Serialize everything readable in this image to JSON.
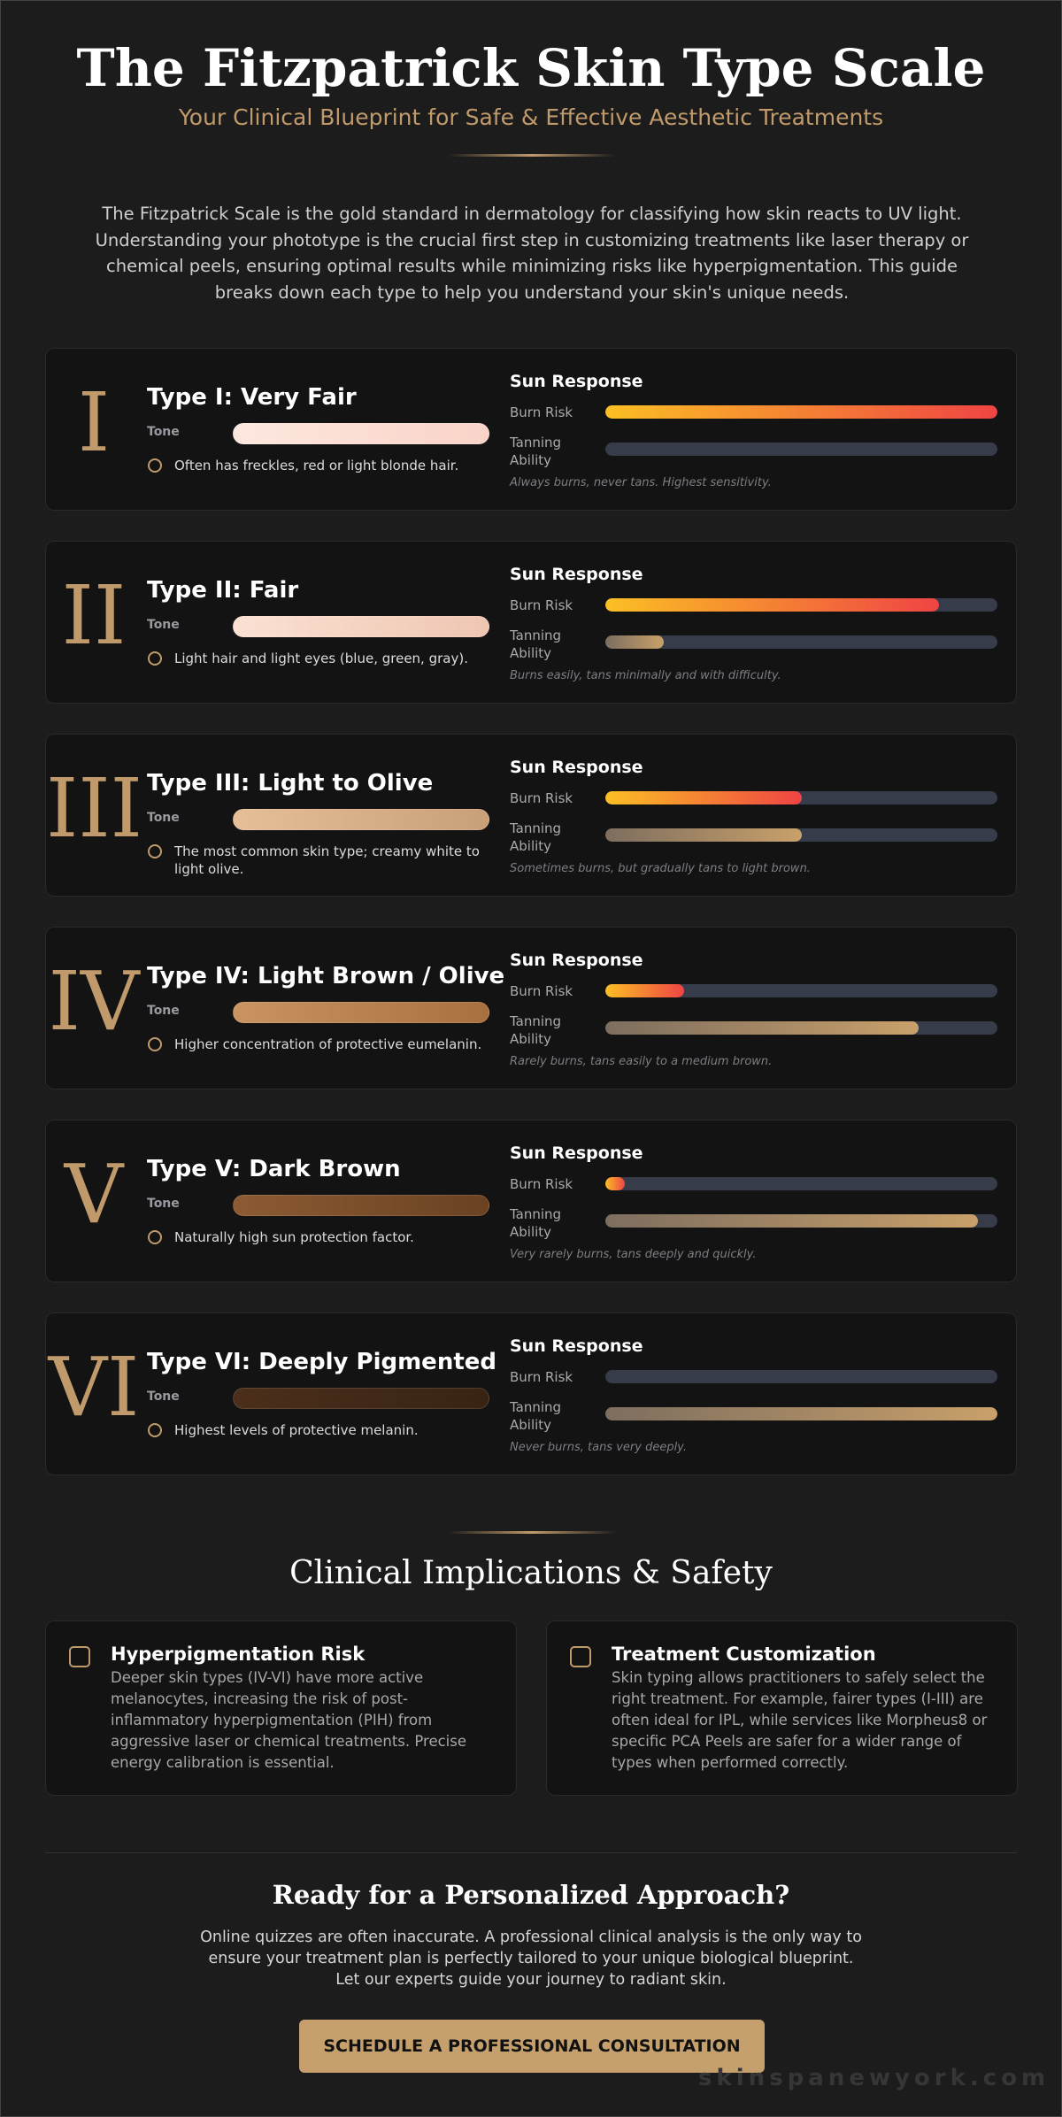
{
  "header": {
    "title": "The Fitzpatrick Skin Type Scale",
    "subtitle": "Your Clinical Blueprint for Safe & Effective Aesthetic Treatments"
  },
  "intro": "The Fitzpatrick Scale is the gold standard in dermatology for classifying how skin reacts to UV light. Understanding your phototype is the crucial first step in customizing treatments like laser therapy or chemical peels, ensuring optimal results while minimizing risks like hyperpigmentation. This guide breaks down each type to help you understand your skin's unique needs.",
  "labels": {
    "tone": "Tone",
    "sun_response": "Sun Response",
    "burn_risk": "Burn Risk",
    "tanning_ability": "Tanning Ability"
  },
  "bar_colors": {
    "burn": [
      "#fbbf24",
      "#ef4444"
    ],
    "tan": [
      "#7d6e5f",
      "#c9a06a"
    ]
  },
  "types": [
    {
      "numeral": "I",
      "name": "Type I: Very Fair",
      "tone": [
        "#fde8df",
        "#f9d3c8"
      ],
      "note": "Often has freckles, red or light blonde hair.",
      "burn_risk": 100,
      "tanning_ability": 0,
      "summary": "Always burns, never tans. Highest sensitivity."
    },
    {
      "numeral": "II",
      "name": "Type II: Fair",
      "tone": [
        "#fbe1d3",
        "#efc6b2"
      ],
      "note": "Light hair and light eyes (blue, green, gray).",
      "burn_risk": 85,
      "tanning_ability": 15,
      "summary": "Burns easily, tans minimally and with difficulty."
    },
    {
      "numeral": "III",
      "name": "Type III: Light to Olive",
      "tone": [
        "#e6be98",
        "#c99f78"
      ],
      "note": "The most common skin type; creamy white to light olive.",
      "burn_risk": 50,
      "tanning_ability": 50,
      "summary": "Sometimes burns, but gradually tans to light brown."
    },
    {
      "numeral": "IV",
      "name": "Type IV: Light Brown / Olive",
      "tone": [
        "#c99460",
        "#a8703f"
      ],
      "note": "Higher concentration of protective eumelanin.",
      "burn_risk": 20,
      "tanning_ability": 80,
      "summary": "Rarely burns, tans easily to a medium brown."
    },
    {
      "numeral": "V",
      "name": "Type V: Dark Brown",
      "tone": [
        "#8c5b33",
        "#6a4222"
      ],
      "note": "Naturally high sun protection factor.",
      "burn_risk": 5,
      "tanning_ability": 95,
      "summary": "Very rarely burns, tans deeply and quickly."
    },
    {
      "numeral": "VI",
      "name": "Type VI: Deeply Pigmented",
      "tone": [
        "#4b2f1b",
        "#382313"
      ],
      "note": "Highest levels of protective melanin.",
      "burn_risk": 0,
      "tanning_ability": 100,
      "summary": "Never burns, tans very deeply."
    }
  ],
  "implications": {
    "title": "Clinical Implications & Safety",
    "cards": [
      {
        "title": "Hyperpigmentation Risk",
        "text": "Deeper skin types (IV-VI) have more active melanocytes, increasing the risk of post-inflammatory hyperpigmentation (PIH) from aggressive laser or chemical treatments. Precise energy calibration is essential."
      },
      {
        "title": "Treatment Customization",
        "text": "Skin typing allows practitioners to safely select the right treatment. For example, fairer types (I-III) are often ideal for IPL, while services like Morpheus8 or specific PCA Peels are safer for a wider range of types when performed correctly."
      }
    ]
  },
  "cta": {
    "title": "Ready for a Personalized Approach?",
    "text": "Online quizzes are often inaccurate. A professional clinical analysis is the only way to ensure your treatment plan is perfectly tailored to your unique biological blueprint. Let our experts guide your journey to radiant skin.",
    "button": "SCHEDULE A PROFESSIONAL CONSULTATION"
  },
  "footer": {
    "watermark": "skinspanewyork.com"
  }
}
